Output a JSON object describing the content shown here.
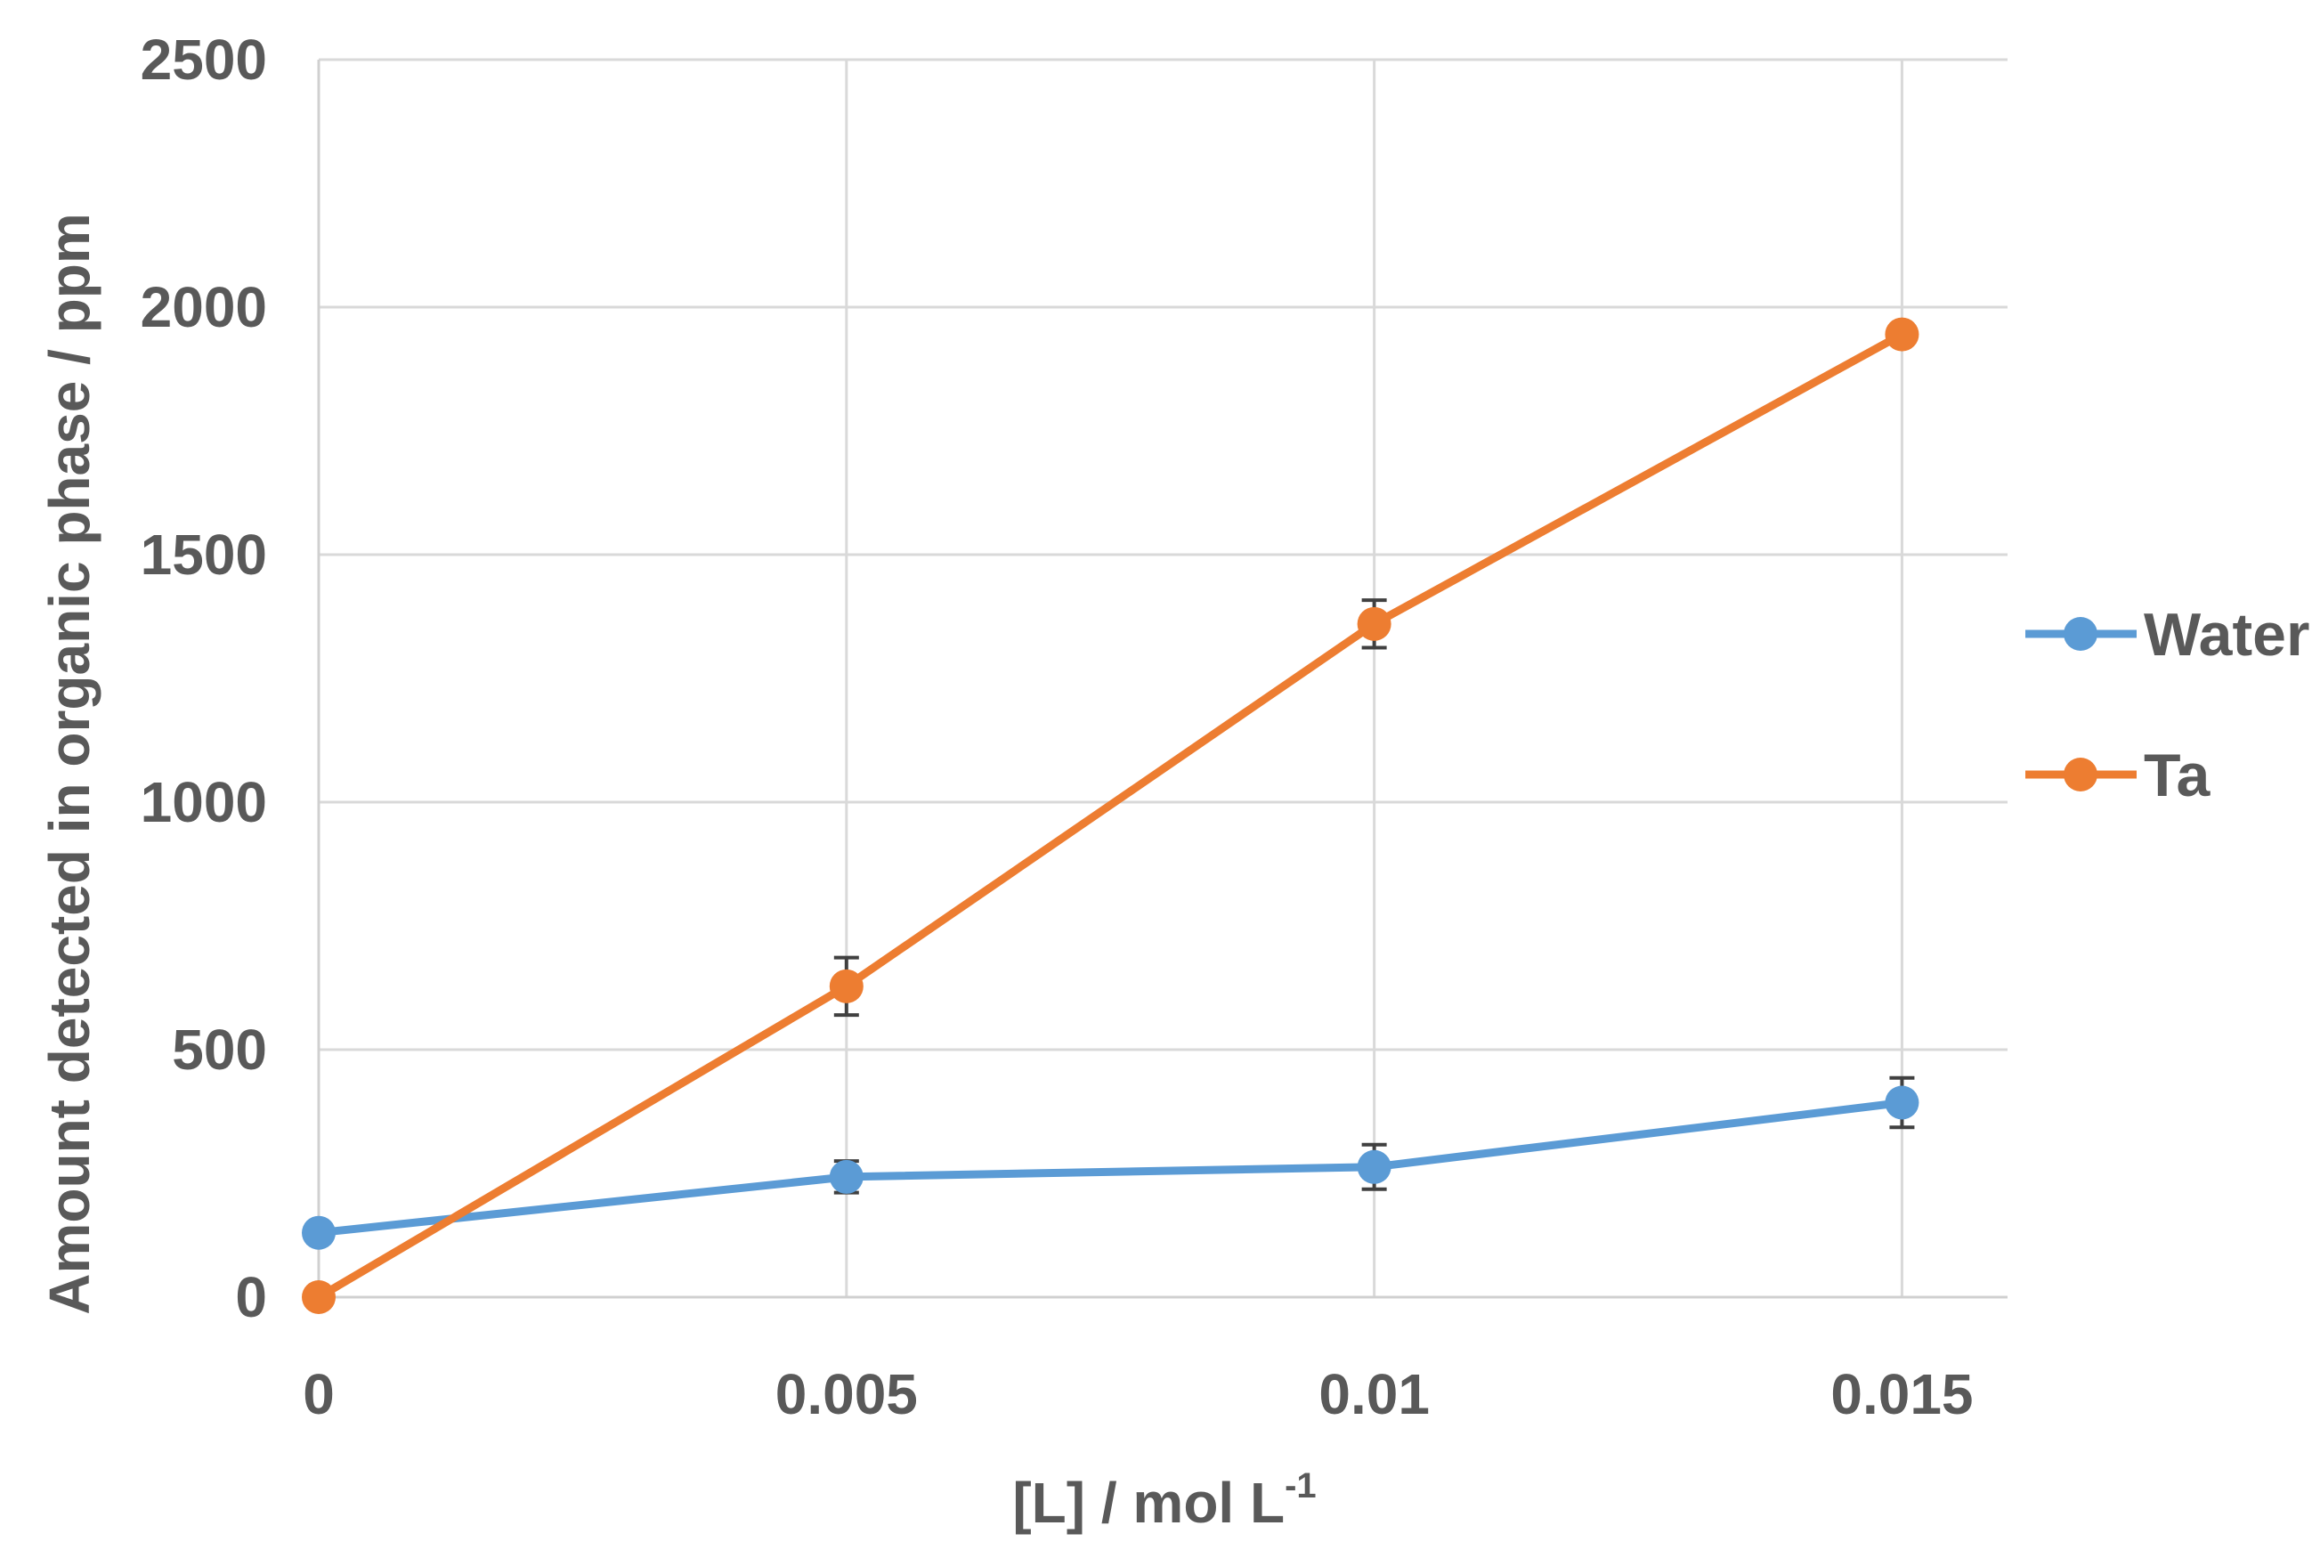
{
  "chart_data": {
    "type": "line",
    "xlabel": "[L] / mol L",
    "xlabel_superscript": "-1",
    "ylabel": "Amount detected in organic phase / ppm",
    "xlim": [
      0,
      0.016
    ],
    "ylim": [
      0,
      2500
    ],
    "x": [
      0,
      0.005,
      0.01,
      0.015
    ],
    "x_tick_labels": [
      "0",
      "0.005",
      "0.01",
      "0.015"
    ],
    "y_ticks": [
      0,
      500,
      1000,
      1500,
      2000,
      2500
    ],
    "y_tick_labels": [
      "0",
      "500",
      "1000",
      "1500",
      "2000",
      "2500"
    ],
    "grid": true,
    "legend_position": "right",
    "series": [
      {
        "name": "Water",
        "color": "#5b9bd5",
        "values": [
          130,
          243,
          263,
          393
        ],
        "errors": [
          0,
          32,
          45,
          50
        ]
      },
      {
        "name": "Ta",
        "color": "#ed7d31",
        "values": [
          0,
          628,
          1360,
          1945
        ],
        "errors": [
          0,
          58,
          48,
          0
        ]
      }
    ]
  }
}
